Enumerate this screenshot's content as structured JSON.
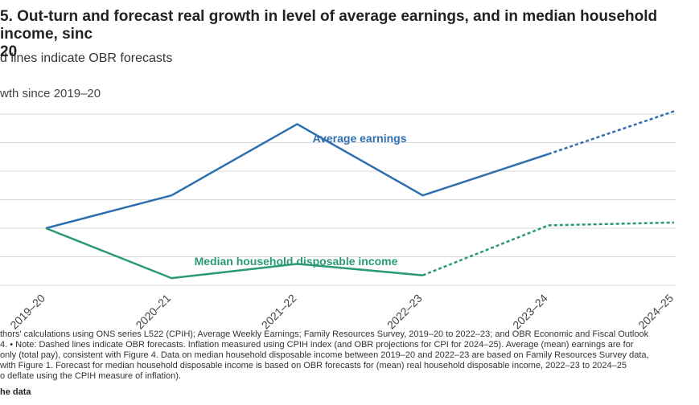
{
  "title": "5. Out-turn and forecast real growth in level of average earnings, and in median household income, sinc\n20",
  "subtitle": "d lines indicate OBR forecasts",
  "y_axis_label": "wth since 2019–20",
  "colors": {
    "earnings": "#2e6fb0",
    "income": "#2a9a73",
    "grid": "#d9d9d9",
    "text": "#444444"
  },
  "chart_data": {
    "type": "line",
    "categories": [
      "2019–20",
      "2020–21",
      "2021–22",
      "2022–23",
      "2023–24",
      "2024–25"
    ],
    "ylim": [
      -4,
      8
    ],
    "grid": true,
    "series": [
      {
        "name": "Average earnings",
        "values": [
          0,
          2.3,
          7.3,
          2.3,
          5.2,
          8.2
        ],
        "forecast_from_index": 4
      },
      {
        "name": "Median household disposable income",
        "values": [
          0,
          -3.5,
          -2.5,
          -3.3,
          0.2,
          0.4
        ],
        "forecast_from_index": 3
      }
    ]
  },
  "notes": "thors' calculations using ONS series L522 (CPIH); Average Weekly Earnings; Family Resources Survey, 2019–20 to 2022–23; and OBR Economic and Fiscal Outlook\n4. • Note: Dashed lines indicate OBR forecasts. Inflation measured using CPIH index (and OBR projections for CPI for 2024–25). Average (mean) earnings are for\nonly (total pay), consistent with Figure 4. Data on median household disposable income between 2019–20 and 2022–23 are based on Family Resources Survey data,\nwith Figure 1. Forecast for median household disposable income is based on OBR forecasts for (mean) real household disposable income, 2022–23 to 2024–25\no deflate using the CPIH measure of inflation).",
  "link_label": "he data"
}
